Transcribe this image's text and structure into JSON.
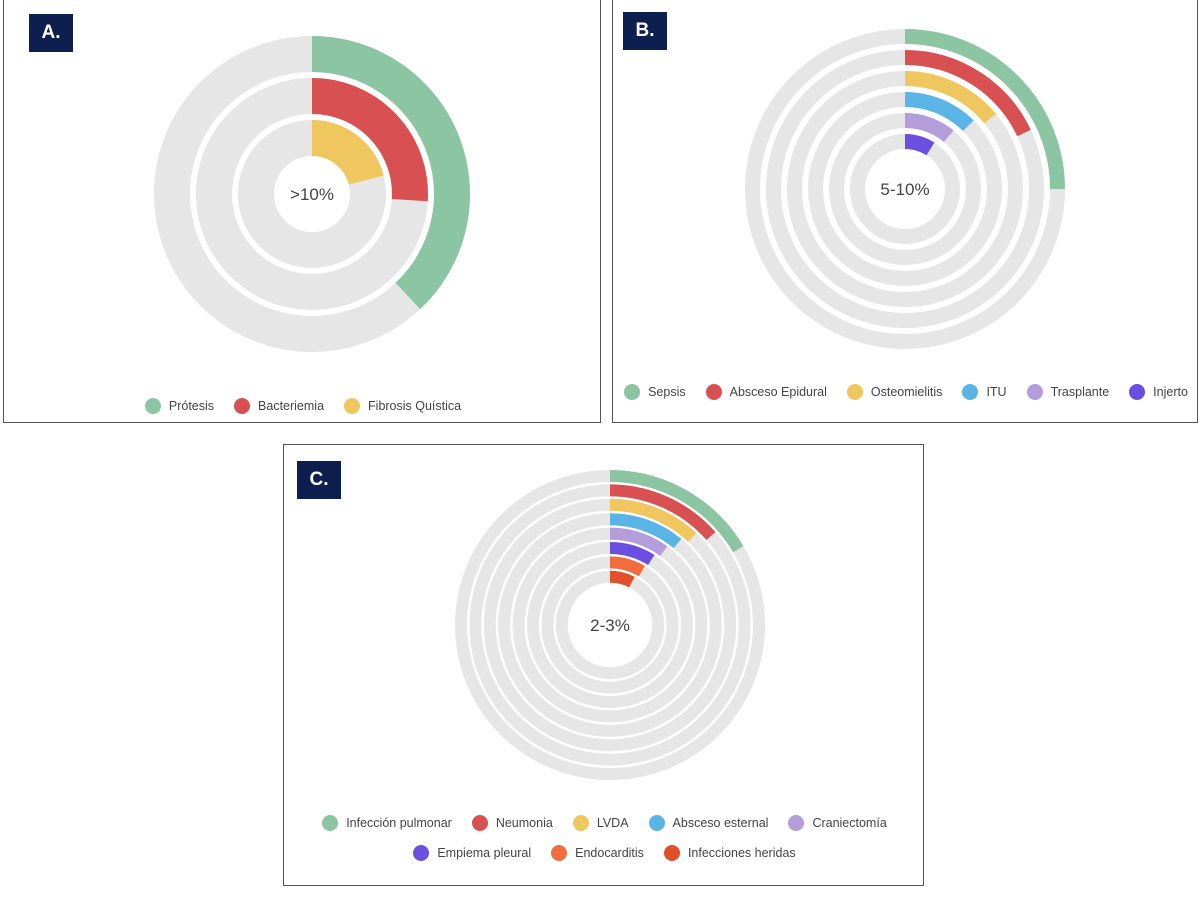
{
  "chart_data": [
    {
      "type": "radial-bar",
      "panel_label": "A.",
      "center_label": ">10%",
      "series": [
        {
          "name": "Prótesis",
          "value": 0.38,
          "color": "#8cc5a2"
        },
        {
          "name": "Bacteriemia",
          "value": 0.26,
          "color": "#d95052"
        },
        {
          "name": "Fibrosis Quística",
          "value": 0.21,
          "color": "#efc75e"
        }
      ]
    },
    {
      "type": "radial-bar",
      "panel_label": "B.",
      "center_label": "5-10%",
      "series": [
        {
          "name": "Sepsis",
          "value": 0.25,
          "color": "#8cc5a2"
        },
        {
          "name": "Absceso Epidural",
          "value": 0.18,
          "color": "#d95052"
        },
        {
          "name": "Osteomielitis",
          "value": 0.14,
          "color": "#efc75e"
        },
        {
          "name": "ITU",
          "value": 0.125,
          "color": "#5ab4e5"
        },
        {
          "name": "Trasplante",
          "value": 0.11,
          "color": "#b39ddb"
        },
        {
          "name": "Injerto",
          "value": 0.09,
          "color": "#6a4fe0"
        }
      ]
    },
    {
      "type": "radial-bar",
      "panel_label": "C.",
      "center_label": "2-3%",
      "series": [
        {
          "name": "Infección pulmonar",
          "value": 0.165,
          "color": "#8cc5a2"
        },
        {
          "name": "Neumonia",
          "value": 0.135,
          "color": "#d95052"
        },
        {
          "name": "LVDA",
          "value": 0.12,
          "color": "#efc75e"
        },
        {
          "name": "Absceso esternal",
          "value": 0.11,
          "color": "#5ab4e5"
        },
        {
          "name": "Craniectomía",
          "value": 0.1,
          "color": "#b39ddb"
        },
        {
          "name": "Empiema pleural",
          "value": 0.09,
          "color": "#6a4fe0"
        },
        {
          "name": "Endocarditis",
          "value": 0.085,
          "color": "#f26d3d"
        },
        {
          "name": "Infecciones heridas",
          "value": 0.075,
          "color": "#e0502a"
        }
      ]
    }
  ]
}
